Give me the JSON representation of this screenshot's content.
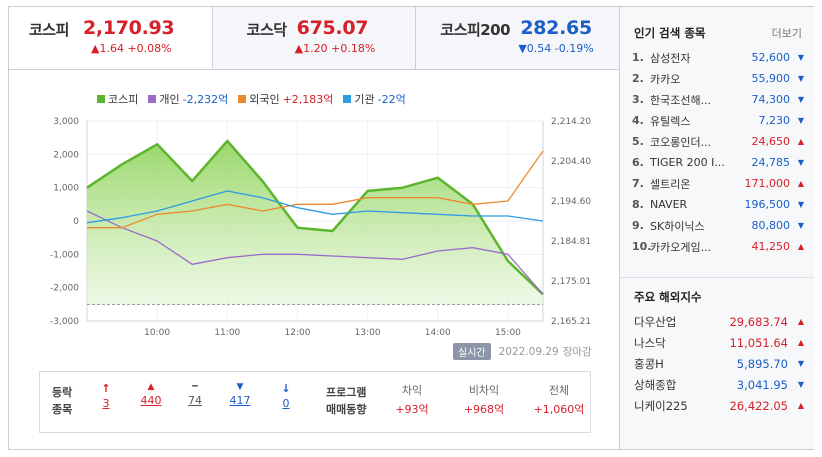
{
  "tabs": [
    {
      "name": "코스피",
      "value": "2,170.93",
      "change": "▲1.64 +0.08%",
      "dir": "up"
    },
    {
      "name": "코스닥",
      "value": "675.07",
      "change": "▲1.20 +0.18%",
      "dir": "up"
    },
    {
      "name": "코스피200",
      "value": "282.65",
      "change": "▼0.54 -0.19%",
      "dir": "down"
    }
  ],
  "legend": [
    {
      "name": "코스피",
      "value": "",
      "color": "#5cb62d"
    },
    {
      "name": "개인",
      "value": "-2,232억",
      "color": "#9b6bc9"
    },
    {
      "name": "외국인",
      "value": "+2,183억",
      "color": "#ee8a2e"
    },
    {
      "name": "기관",
      "value": "-22억",
      "color": "#2f9be3"
    }
  ],
  "chart_data": {
    "type": "line",
    "title": "",
    "x": [
      "09:00",
      "09:30",
      "10:00",
      "10:30",
      "11:00",
      "11:30",
      "12:00",
      "12:30",
      "13:00",
      "13:30",
      "14:00",
      "14:30",
      "15:00",
      "15:30"
    ],
    "series": [
      {
        "name": "코스피",
        "values": [
          1000,
          1700,
          2300,
          1200,
          2400,
          1200,
          -200,
          -300,
          900,
          1000,
          1300,
          500,
          -1200,
          -2200
        ]
      },
      {
        "name": "개인",
        "values": [
          300,
          -200,
          -600,
          -1300,
          -1100,
          -1000,
          -1000,
          -1050,
          -1100,
          -1150,
          -900,
          -800,
          -1000,
          -2200
        ]
      },
      {
        "name": "외국인",
        "values": [
          -200,
          -200,
          200,
          300,
          500,
          300,
          500,
          500,
          700,
          700,
          700,
          500,
          600,
          2100
        ]
      },
      {
        "name": "기관",
        "values": [
          -50,
          100,
          300,
          600,
          900,
          700,
          400,
          200,
          300,
          250,
          200,
          150,
          150,
          0
        ]
      }
    ],
    "y_left_ticks": [
      "3,000",
      "2,000",
      "1,000",
      "0",
      "-1,000",
      "-2,000",
      "-3,000"
    ],
    "y_right_ticks": [
      "2,214.20",
      "2,204.40",
      "2,194.60",
      "2,184.81",
      "2,175.01",
      "2,165.21"
    ],
    "x_ticks": [
      "10:00",
      "11:00",
      "12:00",
      "13:00",
      "14:00",
      "15:00"
    ],
    "ylim": [
      -3000,
      3000
    ],
    "grid": true
  },
  "chart_footer": {
    "badge": "실시간",
    "date": "2022.09.29",
    "status": "장마감"
  },
  "breadth": {
    "label1": "등락",
    "label2": "종목",
    "items": [
      {
        "icon": "↑",
        "value": "3",
        "color": "#d6202a"
      },
      {
        "icon": "▲",
        "value": "440",
        "color": "#d6202a"
      },
      {
        "icon": "━",
        "value": "74",
        "color": "#555555"
      },
      {
        "icon": "▼",
        "value": "417",
        "color": "#1b5ec7"
      },
      {
        "icon": "↓",
        "value": "0",
        "color": "#1b5ec7"
      }
    ]
  },
  "program": {
    "label1": "프로그램",
    "label2": "매매동향",
    "items": [
      {
        "label": "차익",
        "value": "+93억"
      },
      {
        "label": "비차익",
        "value": "+968억"
      },
      {
        "label": "전체",
        "value": "+1,060억"
      }
    ]
  },
  "popular": {
    "title": "인기 검색 종목",
    "more": "더보기",
    "items": [
      {
        "rank": "1.",
        "name": "삼성전자",
        "price": "52,600",
        "dir": "down"
      },
      {
        "rank": "2.",
        "name": "카카오",
        "price": "55,900",
        "dir": "down"
      },
      {
        "rank": "3.",
        "name": "한국조선해...",
        "price": "74,300",
        "dir": "down"
      },
      {
        "rank": "4.",
        "name": "유틸렉스",
        "price": "7,230",
        "dir": "down"
      },
      {
        "rank": "5.",
        "name": "코오롱인더...",
        "price": "24,650",
        "dir": "up"
      },
      {
        "rank": "6.",
        "name": "TIGER 200 I...",
        "price": "24,785",
        "dir": "down"
      },
      {
        "rank": "7.",
        "name": "셀트리온",
        "price": "171,000",
        "dir": "up"
      },
      {
        "rank": "8.",
        "name": "NAVER",
        "price": "196,500",
        "dir": "down"
      },
      {
        "rank": "9.",
        "name": "SK하이닉스",
        "price": "80,800",
        "dir": "down"
      },
      {
        "rank": "10.",
        "name": "카카오게임...",
        "price": "41,250",
        "dir": "up"
      }
    ]
  },
  "overseas": {
    "title": "주요 해외지수",
    "items": [
      {
        "name": "다우산업",
        "price": "29,683.74",
        "dir": "up"
      },
      {
        "name": "나스닥",
        "price": "11,051.64",
        "dir": "up"
      },
      {
        "name": "홍콩H",
        "price": "5,895.70",
        "dir": "down"
      },
      {
        "name": "상해종합",
        "price": "3,041.95",
        "dir": "down"
      },
      {
        "name": "니케이225",
        "price": "26,422.05",
        "dir": "up"
      }
    ]
  }
}
